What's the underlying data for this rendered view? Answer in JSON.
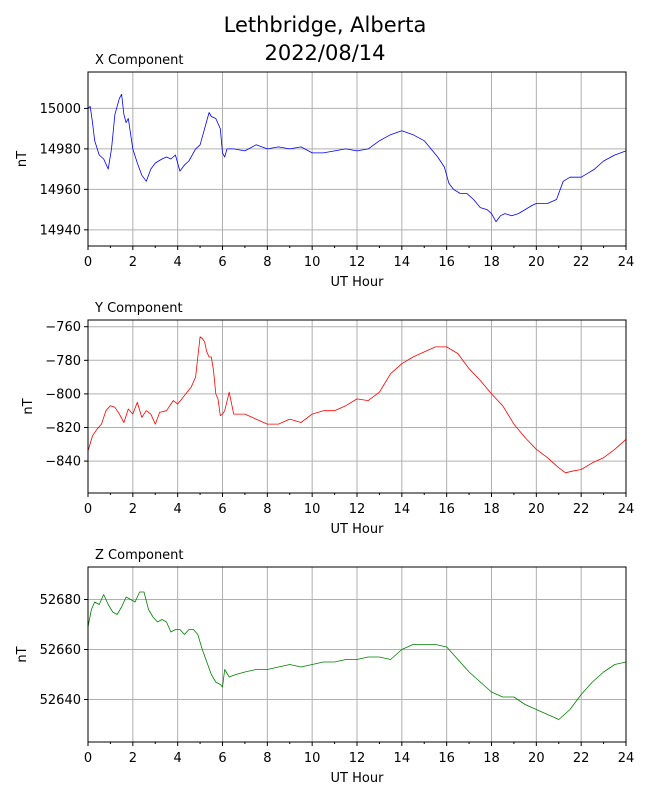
{
  "figure": {
    "title_line1": "Lethbridge, Alberta",
    "title_line2": "2022/08/14"
  },
  "chart_data": [
    {
      "type": "line",
      "title": "X Component",
      "xlabel": "UT Hour",
      "ylabel": "nT",
      "xlim": [
        0,
        24
      ],
      "ylim": [
        14932,
        15018
      ],
      "xticks": [
        0,
        2,
        4,
        6,
        8,
        10,
        12,
        14,
        16,
        18,
        20,
        22,
        24
      ],
      "yticks": [
        14940,
        14960,
        14980,
        15000
      ],
      "grid": true,
      "color": "#0000ff",
      "x": [
        0,
        0.1,
        0.2,
        0.3,
        0.5,
        0.7,
        0.9,
        1.05,
        1.2,
        1.4,
        1.5,
        1.6,
        1.7,
        1.8,
        2.0,
        2.2,
        2.4,
        2.6,
        2.8,
        3.0,
        3.3,
        3.5,
        3.7,
        3.9,
        4.1,
        4.3,
        4.5,
        4.8,
        5.0,
        5.2,
        5.4,
        5.5,
        5.7,
        5.9,
        6.0,
        6.1,
        6.2,
        6.5,
        7.0,
        7.5,
        8.0,
        8.5,
        9.0,
        9.5,
        10.0,
        10.5,
        11.0,
        11.5,
        12.0,
        12.5,
        13.0,
        13.5,
        14.0,
        14.5,
        15.0,
        15.3,
        15.6,
        15.9,
        16.1,
        16.3,
        16.6,
        16.9,
        17.2,
        17.5,
        17.8,
        18.0,
        18.2,
        18.4,
        18.6,
        18.9,
        19.2,
        19.5,
        19.8,
        20.0,
        20.5,
        20.9,
        21.2,
        21.5,
        22.0,
        22.3,
        22.6,
        23.0,
        23.5,
        24.0
      ],
      "y": [
        15000,
        15001,
        14993,
        14984,
        14977,
        14975,
        14970,
        14980,
        14997,
        15005,
        15007,
        14997,
        14993,
        14995,
        14980,
        14973,
        14967,
        14964,
        14970,
        14973,
        14975,
        14976,
        14975,
        14977,
        14969,
        14972,
        14974,
        14980,
        14982,
        14990,
        14998,
        14996,
        14995,
        14990,
        14978,
        14976,
        14980,
        14980,
        14979,
        14982,
        14980,
        14981,
        14980,
        14981,
        14978,
        14978,
        14979,
        14980,
        14979,
        14980,
        14984,
        14987,
        14989,
        14987,
        14984,
        14980,
        14976,
        14971,
        14963,
        14960,
        14958,
        14958,
        14955,
        14951,
        14950,
        14948,
        14944,
        14947,
        14948,
        14947,
        14948,
        14950,
        14952,
        14953,
        14953,
        14955,
        14964,
        14966,
        14966,
        14968,
        14970,
        14974,
        14977,
        14979
      ]
    },
    {
      "type": "line",
      "title": "Y Component",
      "xlabel": "UT Hour",
      "ylabel": "nT",
      "xlim": [
        0,
        24
      ],
      "ylim": [
        -859,
        -756
      ],
      "xticks": [
        0,
        2,
        4,
        6,
        8,
        10,
        12,
        14,
        16,
        18,
        20,
        22,
        24
      ],
      "yticks": [
        -760,
        -780,
        -800,
        -820,
        -840
      ],
      "grid": true,
      "color": "#ff0000",
      "x": [
        0,
        0.2,
        0.4,
        0.6,
        0.8,
        1.0,
        1.2,
        1.4,
        1.6,
        1.8,
        2.0,
        2.2,
        2.4,
        2.6,
        2.8,
        3.0,
        3.2,
        3.5,
        3.8,
        4.0,
        4.3,
        4.6,
        4.8,
        4.9,
        5.0,
        5.1,
        5.2,
        5.3,
        5.4,
        5.5,
        5.6,
        5.7,
        5.8,
        5.9,
        6.0,
        6.1,
        6.3,
        6.5,
        7.0,
        7.5,
        8.0,
        8.5,
        9.0,
        9.5,
        10.0,
        10.5,
        11.0,
        11.5,
        12.0,
        12.5,
        13.0,
        13.5,
        14.0,
        14.5,
        15.0,
        15.5,
        16.0,
        16.5,
        17.0,
        17.5,
        18.0,
        18.5,
        19.0,
        19.5,
        20.0,
        20.5,
        21.0,
        21.3,
        21.6,
        22.0,
        22.5,
        23.0,
        23.5,
        24.0
      ],
      "y": [
        -834,
        -825,
        -821,
        -818,
        -810,
        -807,
        -808,
        -812,
        -817,
        -809,
        -812,
        -805,
        -814,
        -810,
        -812,
        -818,
        -811,
        -810,
        -804,
        -806,
        -801,
        -796,
        -790,
        -778,
        -766,
        -767,
        -769,
        -775,
        -778,
        -778,
        -786,
        -800,
        -803,
        -813,
        -812,
        -810,
        -799,
        -812,
        -812,
        -815,
        -818,
        -818,
        -815,
        -817,
        -812,
        -810,
        -810,
        -807,
        -803,
        -804,
        -799,
        -788,
        -782,
        -778,
        -775,
        -772,
        -772,
        -776,
        -785,
        -792,
        -800,
        -807,
        -818,
        -826,
        -833,
        -838,
        -844,
        -847,
        -846,
        -845,
        -841,
        -838,
        -833,
        -827
      ]
    },
    {
      "type": "line",
      "title": "Z Component",
      "xlabel": "UT Hour",
      "ylabel": "nT",
      "xlim": [
        0,
        24
      ],
      "ylim": [
        52623,
        52693
      ],
      "xticks": [
        0,
        2,
        4,
        6,
        8,
        10,
        12,
        14,
        16,
        18,
        20,
        22,
        24
      ],
      "yticks": [
        52640,
        52660,
        52680
      ],
      "grid": true,
      "color": "#008000",
      "x": [
        0,
        0.15,
        0.3,
        0.5,
        0.7,
        0.9,
        1.1,
        1.3,
        1.5,
        1.7,
        1.9,
        2.1,
        2.3,
        2.5,
        2.7,
        2.9,
        3.1,
        3.3,
        3.5,
        3.7,
        3.9,
        4.1,
        4.3,
        4.5,
        4.7,
        4.9,
        5.1,
        5.3,
        5.5,
        5.7,
        5.9,
        6.0,
        6.1,
        6.3,
        6.6,
        7.0,
        7.5,
        8.0,
        8.5,
        9.0,
        9.5,
        10.0,
        10.5,
        11.0,
        11.5,
        12.0,
        12.5,
        13.0,
        13.5,
        14.0,
        14.5,
        15.0,
        15.5,
        16.0,
        16.5,
        17.0,
        17.5,
        18.0,
        18.5,
        19.0,
        19.5,
        20.0,
        20.5,
        21.0,
        21.5,
        22.0,
        22.5,
        23.0,
        23.5,
        24.0
      ],
      "y": [
        52669,
        52676,
        52679,
        52678,
        52682,
        52678,
        52675,
        52674,
        52677,
        52681,
        52680,
        52679,
        52683,
        52683,
        52676,
        52673,
        52671,
        52672,
        52671,
        52667,
        52668,
        52668,
        52666,
        52668,
        52668,
        52666,
        52660,
        52655,
        52650,
        52647,
        52646,
        52645,
        52652,
        52649,
        52650,
        52651,
        52652,
        52652,
        52653,
        52654,
        52653,
        52654,
        52655,
        52655,
        52656,
        52656,
        52657,
        52657,
        52656,
        52660,
        52662,
        52662,
        52662,
        52661,
        52656,
        52651,
        52647,
        52643,
        52641,
        52641,
        52638,
        52636,
        52634,
        52632,
        52636,
        52642,
        52647,
        52651,
        52654,
        52655
      ]
    }
  ]
}
